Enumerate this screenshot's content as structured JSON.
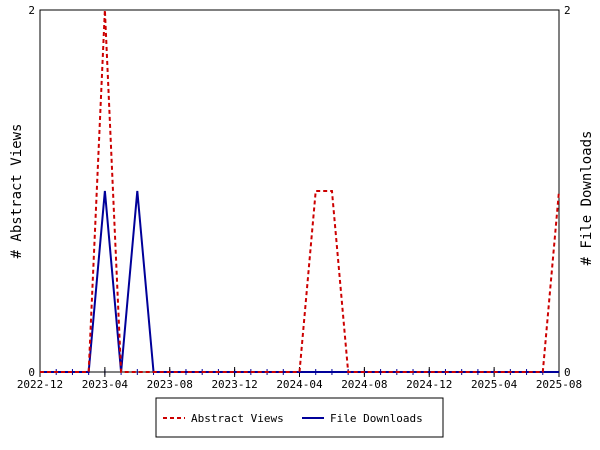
{
  "chart_data": {
    "type": "line",
    "title": "",
    "xlabel": "",
    "ylabel_left": "# Abstract Views",
    "ylabel_right": "# File Downloads",
    "ylim_left": [
      0,
      2
    ],
    "ylim_right": [
      0,
      2
    ],
    "y_ticks_left": [
      "0",
      "2"
    ],
    "y_ticks_right": [
      "0",
      "2"
    ],
    "x_range": [
      "2022-12",
      "2025-08"
    ],
    "x_tick_labels": [
      "2022-12",
      "2023-04",
      "2023-08",
      "2023-12",
      "2024-04",
      "2024-08",
      "2024-12",
      "2025-04",
      "2025-08"
    ],
    "grid": false,
    "legend_position": "bottom",
    "series": [
      {
        "name": "Abstract Views",
        "axis": "left",
        "color": "#cc0000",
        "style": "dashed",
        "points": [
          [
            "2022-12",
            0
          ],
          [
            "2023-03",
            0
          ],
          [
            "2023-04",
            2
          ],
          [
            "2023-05",
            0
          ],
          [
            "2024-04",
            0
          ],
          [
            "2024-05",
            1
          ],
          [
            "2024-06",
            1
          ],
          [
            "2024-07",
            0
          ],
          [
            "2025-07",
            0
          ],
          [
            "2025-08",
            1
          ]
        ]
      },
      {
        "name": "File Downloads",
        "axis": "right",
        "color": "#000099",
        "style": "solid",
        "points": [
          [
            "2022-12",
            0
          ],
          [
            "2023-03",
            0
          ],
          [
            "2023-04",
            1
          ],
          [
            "2023-05",
            0
          ],
          [
            "2023-06",
            1
          ],
          [
            "2023-07",
            0
          ],
          [
            "2025-08",
            0
          ]
        ]
      }
    ]
  }
}
